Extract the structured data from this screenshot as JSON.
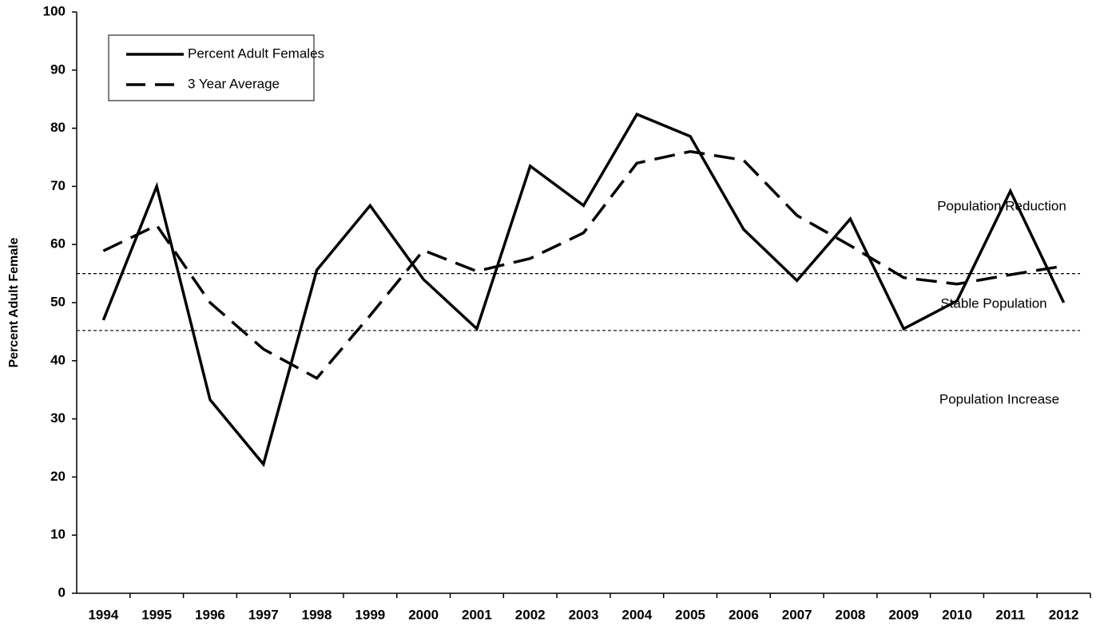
{
  "chart_data": {
    "type": "line",
    "y_axis_label": "Percent Adult Female",
    "categories": [
      "1994",
      "1995",
      "1996",
      "1997",
      "1998",
      "1999",
      "2000",
      "2001",
      "2002",
      "2003",
      "2004",
      "2005",
      "2006",
      "2007",
      "2008",
      "2009",
      "2010",
      "2011",
      "2012"
    ],
    "series": [
      {
        "name": "Percent Adult Females",
        "color": "#000000",
        "dash": "solid",
        "values": [
          47,
          70,
          33.3,
          22.2,
          55.6,
          66.7,
          54,
          45.5,
          73.5,
          66.7,
          82.4,
          78.6,
          62.6,
          53.8,
          64.4,
          45.5,
          50.3,
          69.2,
          50
        ]
      },
      {
        "name": "3 Year Average",
        "color": "#000000",
        "dash": "dashed",
        "values": [
          58.9,
          63.3,
          50,
          42,
          37,
          47.8,
          59,
          55.4,
          57.6,
          62,
          74,
          76,
          74.5,
          65,
          59.8,
          54.3,
          53.2,
          54.8,
          56.3
        ]
      }
    ],
    "reference_lines": [
      55,
      45.2
    ],
    "annotations": [
      "Population Reduction",
      "Stable Population",
      "Population Increase"
    ],
    "ylim": [
      0,
      100
    ],
    "yticks": [
      0,
      10,
      20,
      30,
      40,
      50,
      60,
      70,
      80,
      90,
      100
    ],
    "grid": false,
    "legend": "upper left"
  }
}
